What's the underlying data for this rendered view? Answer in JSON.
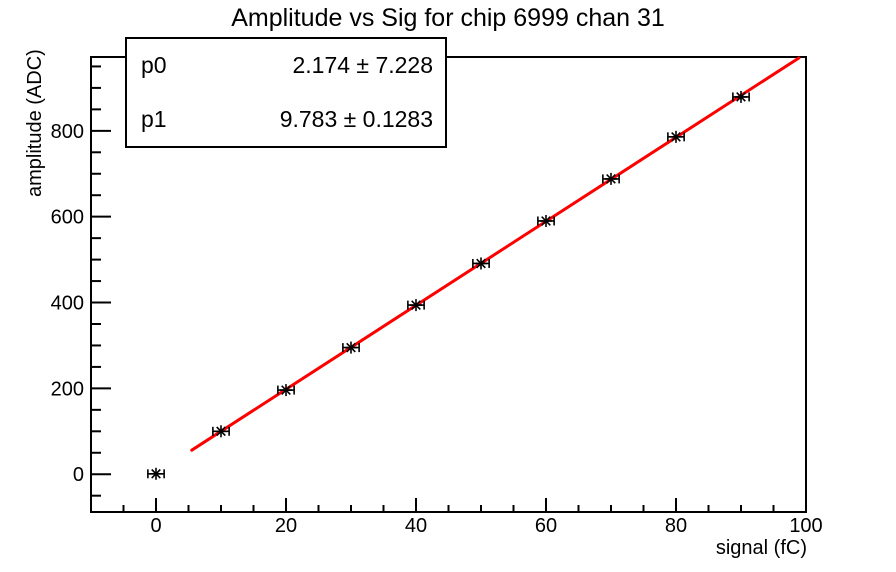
{
  "chart_data": {
    "type": "scatter",
    "title": "Amplitude vs Sig for chip 6999 chan 31",
    "xlabel": "signal (fC)",
    "ylabel": "amplitude (ADC)",
    "xlim": [
      -10,
      100
    ],
    "ylim": [
      -88,
      972
    ],
    "x_major_ticks": [
      0,
      20,
      40,
      60,
      80,
      100
    ],
    "x_minor_step": 5,
    "y_major_ticks": [
      0,
      200,
      400,
      600,
      800
    ],
    "y_minor_step": 50,
    "grid": false,
    "legend": "none",
    "series": [
      {
        "name": "amplitude-vs-signal-points",
        "marker": "asterisk",
        "color": "#000000",
        "x": [
          0,
          10,
          20,
          30,
          40,
          50,
          60,
          70,
          80,
          90
        ],
        "y": [
          1,
          100,
          196,
          295,
          394,
          491,
          590,
          688,
          786,
          879
        ],
        "x_err": 1.25
      }
    ],
    "fit": {
      "type": "linear",
      "p0": 2.174,
      "p1": 9.783,
      "x_start": 5.5,
      "x_end": 98.9,
      "color": "#ff0000"
    }
  },
  "stats_box": {
    "rows": [
      {
        "label": "p0",
        "value": "2.174 ± 7.228"
      },
      {
        "label": "p1",
        "value": "9.783 ± 0.1283"
      }
    ]
  }
}
